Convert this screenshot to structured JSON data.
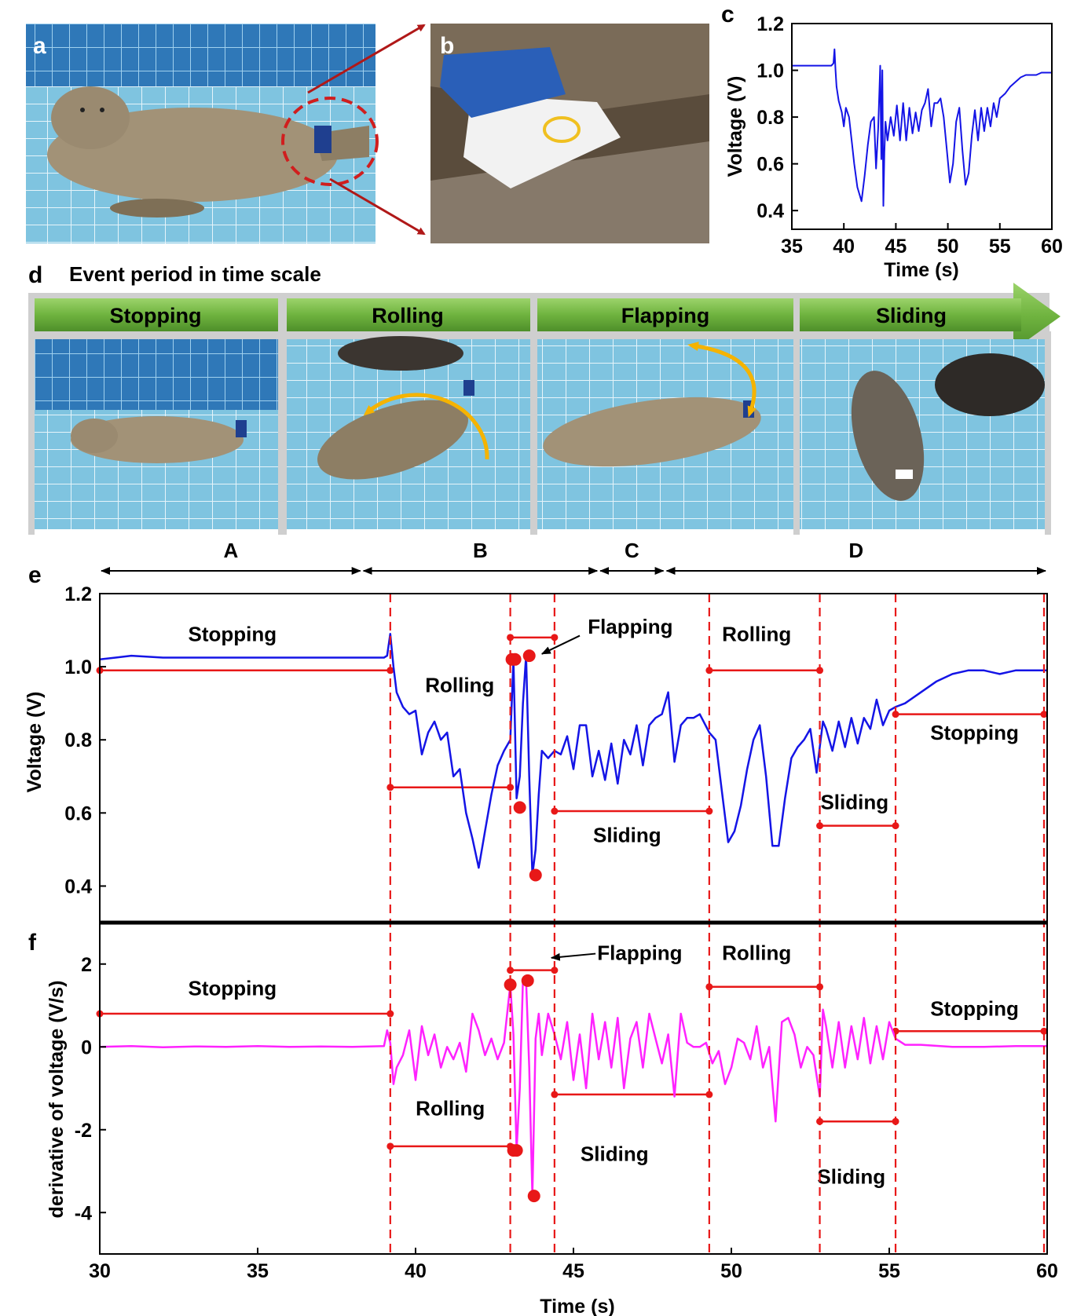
{
  "panel_labels": {
    "a": "a",
    "b": "b",
    "c": "c",
    "d": "d",
    "e": "e",
    "f": "f"
  },
  "photo_a": {
    "scene": "seal lying on tiled pool floor with sensor on tail flippers"
  },
  "photo_b": {
    "scene": "close-up of sensor strapped to seal hind flippers"
  },
  "panel_d": {
    "title": "Event period in time scale",
    "events": [
      {
        "label": "Stopping"
      },
      {
        "label": "Rolling"
      },
      {
        "label": "Flapping"
      },
      {
        "label": "Sliding"
      }
    ]
  },
  "segments": [
    {
      "label": "A",
      "from": 30,
      "to": 38.3
    },
    {
      "label": "B",
      "from": 38.3,
      "to": 45.8
    },
    {
      "label": "C",
      "from": 45.8,
      "to": 47.9
    },
    {
      "label": "D",
      "from": 47.9,
      "to": 60
    }
  ],
  "event_boundaries": [
    39.2,
    43.0,
    44.4,
    49.3,
    52.8,
    55.2,
    59.9
  ],
  "colors": {
    "voltage": "#1414e6",
    "derivative": "#ff22ff",
    "event": "#e81818",
    "arrow": "#f5b301",
    "banner_green": "#7cc14a"
  },
  "chart_data": [
    {
      "id": "c",
      "type": "line",
      "xlabel": "Time (s)",
      "ylabel": "Voltage (V)",
      "xlim": [
        35,
        60
      ],
      "ylim": [
        0.32,
        1.2
      ],
      "xticks": [
        35,
        40,
        45,
        50,
        55,
        60
      ],
      "yticks": [
        0.4,
        0.6,
        0.8,
        1.0,
        1.2
      ],
      "xtick_labels": [
        "35",
        "40",
        "45",
        "50",
        "55",
        "60"
      ],
      "ytick_labels": [
        "0.4",
        "0.6",
        "0.8",
        "1.0",
        "1.2"
      ],
      "series": [
        {
          "name": "Voltage",
          "color": "#1414e6",
          "x": [
            35,
            38.8,
            39.0,
            39.1,
            39.2,
            39.3,
            39.5,
            39.8,
            40.0,
            40.2,
            40.5,
            40.8,
            41.0,
            41.3,
            41.7,
            42.0,
            42.3,
            42.6,
            42.9,
            43.1,
            43.3,
            43.5,
            43.6,
            43.7,
            43.8,
            43.9,
            44.0,
            44.2,
            44.5,
            44.8,
            45.1,
            45.4,
            45.7,
            46.0,
            46.3,
            46.6,
            46.9,
            47.2,
            47.5,
            47.8,
            48.1,
            48.4,
            48.7,
            49.0,
            49.3,
            49.6,
            49.9,
            50.2,
            50.5,
            50.8,
            51.1,
            51.4,
            51.7,
            52.0,
            52.3,
            52.6,
            52.9,
            53.2,
            53.5,
            53.8,
            54.1,
            54.4,
            54.7,
            55.0,
            55.5,
            56,
            56.5,
            57,
            57.5,
            58,
            58.5,
            59,
            59.5,
            60
          ],
          "y": [
            1.02,
            1.02,
            1.03,
            1.09,
            1.0,
            0.93,
            0.87,
            0.82,
            0.76,
            0.84,
            0.8,
            0.68,
            0.6,
            0.5,
            0.44,
            0.55,
            0.68,
            0.78,
            0.8,
            0.58,
            0.75,
            1.02,
            0.62,
            1.0,
            0.42,
            0.65,
            0.78,
            0.7,
            0.8,
            0.72,
            0.85,
            0.7,
            0.86,
            0.7,
            0.84,
            0.73,
            0.82,
            0.74,
            0.83,
            0.86,
            0.92,
            0.76,
            0.86,
            0.86,
            0.88,
            0.8,
            0.66,
            0.52,
            0.6,
            0.78,
            0.84,
            0.66,
            0.51,
            0.56,
            0.72,
            0.83,
            0.7,
            0.84,
            0.74,
            0.84,
            0.76,
            0.86,
            0.8,
            0.88,
            0.9,
            0.93,
            0.95,
            0.97,
            0.98,
            0.98,
            0.98,
            0.99,
            0.99,
            0.99
          ]
        }
      ]
    },
    {
      "id": "e",
      "type": "line",
      "xlabel": "",
      "ylabel": "Voltage (V)",
      "xlim": [
        30,
        60
      ],
      "ylim": [
        0.3,
        1.2
      ],
      "yticks": [
        0.4,
        0.6,
        0.8,
        1.0,
        1.2
      ],
      "ytick_labels": [
        "0.4",
        "0.6",
        "0.8",
        "1.0",
        "1.2"
      ],
      "series": [
        {
          "name": "Voltage",
          "color": "#1414e6",
          "x": [
            30,
            30.5,
            31,
            32,
            33,
            34,
            35,
            36,
            37,
            38,
            39.0,
            39.1,
            39.2,
            39.3,
            39.4,
            39.6,
            39.8,
            40.0,
            40.2,
            40.4,
            40.6,
            40.8,
            41.0,
            41.2,
            41.4,
            41.6,
            41.8,
            42.0,
            42.2,
            42.4,
            42.6,
            42.8,
            43.0,
            43.1,
            43.2,
            43.3,
            43.4,
            43.5,
            43.6,
            43.7,
            43.8,
            43.9,
            44.0,
            44.2,
            44.4,
            44.6,
            44.8,
            45.0,
            45.2,
            45.4,
            45.6,
            45.8,
            46.0,
            46.2,
            46.4,
            46.6,
            46.8,
            47.0,
            47.2,
            47.4,
            47.6,
            47.8,
            48.0,
            48.2,
            48.4,
            48.6,
            48.8,
            49.0,
            49.3,
            49.5,
            49.7,
            49.9,
            50.1,
            50.3,
            50.5,
            50.7,
            50.9,
            51.1,
            51.3,
            51.5,
            51.7,
            51.9,
            52.1,
            52.3,
            52.5,
            52.7,
            52.9,
            53.0,
            53.2,
            53.4,
            53.6,
            53.8,
            54.0,
            54.2,
            54.4,
            54.6,
            54.8,
            55.0,
            55.2,
            55.5,
            56,
            56.5,
            57,
            57.5,
            58,
            58.5,
            59,
            59.5,
            60
          ],
          "y": [
            1.02,
            1.025,
            1.03,
            1.025,
            1.025,
            1.025,
            1.025,
            1.025,
            1.025,
            1.025,
            1.025,
            1.03,
            1.09,
            1.0,
            0.93,
            0.89,
            0.87,
            0.88,
            0.76,
            0.82,
            0.85,
            0.8,
            0.82,
            0.7,
            0.72,
            0.6,
            0.53,
            0.45,
            0.55,
            0.65,
            0.73,
            0.77,
            0.8,
            1.02,
            0.64,
            0.7,
            0.9,
            1.03,
            0.7,
            0.43,
            0.5,
            0.65,
            0.77,
            0.75,
            0.77,
            0.76,
            0.81,
            0.72,
            0.84,
            0.84,
            0.7,
            0.77,
            0.69,
            0.79,
            0.68,
            0.8,
            0.76,
            0.84,
            0.73,
            0.84,
            0.86,
            0.87,
            0.93,
            0.74,
            0.84,
            0.86,
            0.86,
            0.87,
            0.82,
            0.8,
            0.66,
            0.52,
            0.55,
            0.62,
            0.72,
            0.8,
            0.84,
            0.7,
            0.51,
            0.51,
            0.64,
            0.75,
            0.78,
            0.8,
            0.83,
            0.71,
            0.85,
            0.83,
            0.77,
            0.85,
            0.78,
            0.86,
            0.79,
            0.86,
            0.83,
            0.91,
            0.84,
            0.88,
            0.89,
            0.9,
            0.93,
            0.96,
            0.98,
            0.99,
            0.99,
            0.98,
            0.99,
            0.99,
            0.99
          ]
        }
      ],
      "event_bars": [
        {
          "label": "Stopping",
          "x0": 30,
          "x1": 39.2,
          "y": 0.99
        },
        {
          "label": "Rolling",
          "x0": 39.2,
          "x1": 43.0,
          "y": 0.67
        },
        {
          "label": "Flapping",
          "x0": 43.0,
          "x1": 44.4,
          "y": 1.08
        },
        {
          "label": "Sliding",
          "x0": 44.4,
          "x1": 49.3,
          "y": 0.605
        },
        {
          "label": "Rolling",
          "x0": 49.3,
          "x1": 52.8,
          "y": 0.99
        },
        {
          "label": "Sliding",
          "x0": 52.8,
          "x1": 55.2,
          "y": 0.565
        },
        {
          "label": "Stopping",
          "x0": 55.2,
          "x1": 59.9,
          "y": 0.87
        }
      ],
      "peak_markers": [
        [
          43.05,
          1.02
        ],
        [
          43.15,
          1.02
        ],
        [
          43.3,
          0.615
        ],
        [
          43.6,
          1.03
        ],
        [
          43.8,
          0.43
        ]
      ],
      "annotations": [
        {
          "text": "Stopping",
          "x": 34.2,
          "y": 1.07
        },
        {
          "text": "Rolling",
          "x": 41.4,
          "y": 0.93
        },
        {
          "text": "Flapping",
          "x": 46.8,
          "y": 1.09
        },
        {
          "text": "Rolling",
          "x": 50.8,
          "y": 1.07
        },
        {
          "text": "Stopping",
          "x": 57.7,
          "y": 0.8
        },
        {
          "text": "Sliding",
          "x": 46.7,
          "y": 0.52
        },
        {
          "text": "Sliding",
          "x": 53.9,
          "y": 0.61
        }
      ]
    },
    {
      "id": "f",
      "type": "line",
      "xlabel": "Time (s)",
      "ylabel": "derivative of voltage (V/s)",
      "xlim": [
        30,
        60
      ],
      "ylim": [
        -5,
        3
      ],
      "xticks": [
        30,
        35,
        40,
        45,
        50,
        55,
        60
      ],
      "yticks": [
        -4,
        -2,
        0,
        2
      ],
      "xtick_labels": [
        "30",
        "35",
        "40",
        "45",
        "50",
        "55",
        "60"
      ],
      "ytick_labels": [
        "-4",
        "-2",
        "0",
        "2"
      ],
      "series": [
        {
          "name": "derivative",
          "color": "#ff22ff",
          "x": [
            30,
            31,
            32,
            33,
            34,
            35,
            36,
            37,
            38,
            39.0,
            39.1,
            39.2,
            39.3,
            39.4,
            39.6,
            39.8,
            40.0,
            40.2,
            40.4,
            40.6,
            40.8,
            41.0,
            41.2,
            41.4,
            41.6,
            41.8,
            42.0,
            42.2,
            42.4,
            42.6,
            42.8,
            43.0,
            43.1,
            43.2,
            43.3,
            43.4,
            43.5,
            43.6,
            43.7,
            43.8,
            43.9,
            44.0,
            44.2,
            44.4,
            44.6,
            44.8,
            45.0,
            45.2,
            45.4,
            45.6,
            45.8,
            46.0,
            46.2,
            46.4,
            46.6,
            46.8,
            47.0,
            47.2,
            47.4,
            47.6,
            47.8,
            48.0,
            48.2,
            48.4,
            48.6,
            48.8,
            49.0,
            49.2,
            49.4,
            49.6,
            49.8,
            50.0,
            50.2,
            50.4,
            50.6,
            50.8,
            51.0,
            51.2,
            51.4,
            51.6,
            51.8,
            52.0,
            52.2,
            52.4,
            52.6,
            52.8,
            52.9,
            53.0,
            53.2,
            53.4,
            53.6,
            53.8,
            54.0,
            54.2,
            54.4,
            54.6,
            54.8,
            55.0,
            55.2,
            55.5,
            56,
            57,
            58,
            59,
            60
          ],
          "y": [
            0,
            0.02,
            -0.01,
            0.01,
            0,
            0.02,
            0,
            0.01,
            0,
            0.02,
            0.4,
            0.1,
            -0.9,
            -0.5,
            -0.2,
            0.4,
            -0.8,
            0.5,
            -0.2,
            0.3,
            -0.5,
            0.0,
            -0.3,
            0.1,
            -0.6,
            0.8,
            0.4,
            -0.2,
            0.2,
            -0.3,
            0.1,
            1.5,
            0.3,
            -2.5,
            -1.0,
            1.6,
            1.6,
            -0.5,
            -3.6,
            0.2,
            0.8,
            -0.2,
            0.8,
            0.3,
            -0.3,
            0.6,
            -0.8,
            0.3,
            -1.0,
            0.8,
            -0.3,
            0.6,
            -0.5,
            0.7,
            -1.0,
            0.2,
            0.6,
            -0.5,
            0.8,
            0.2,
            -0.4,
            0.3,
            -1.2,
            0.8,
            0.1,
            0.0,
            0.0,
            0.1,
            -0.4,
            -0.1,
            -0.9,
            -0.5,
            0.2,
            0.1,
            -0.3,
            0.5,
            -0.5,
            0.0,
            -1.8,
            0.6,
            0.7,
            0.3,
            -0.5,
            0.0,
            -0.2,
            -1.2,
            0.9,
            0.5,
            -0.5,
            0.6,
            -0.5,
            0.5,
            -0.3,
            0.7,
            -0.4,
            0.5,
            -0.3,
            0.6,
            0.2,
            0.05,
            0.05,
            0.0,
            0.0,
            0.02,
            0.02
          ]
        }
      ],
      "event_bars": [
        {
          "label": "Stopping",
          "x0": 30,
          "x1": 39.2,
          "y": 0.8
        },
        {
          "label": "Rolling",
          "x0": 39.2,
          "x1": 43.0,
          "y": -2.4
        },
        {
          "label": "Flapping",
          "x0": 43.0,
          "x1": 44.4,
          "y": 1.85
        },
        {
          "label": "Sliding",
          "x0": 44.4,
          "x1": 49.3,
          "y": -1.15
        },
        {
          "label": "Rolling",
          "x0": 49.3,
          "x1": 52.8,
          "y": 1.45
        },
        {
          "label": "Sliding",
          "x0": 52.8,
          "x1": 55.2,
          "y": -1.8
        },
        {
          "label": "Stopping",
          "x0": 55.2,
          "x1": 59.9,
          "y": 0.38
        }
      ],
      "peak_markers": [
        [
          43.0,
          1.5
        ],
        [
          43.1,
          -2.5
        ],
        [
          43.2,
          -2.5
        ],
        [
          43.55,
          1.6
        ],
        [
          43.75,
          -3.6
        ]
      ],
      "annotations": [
        {
          "text": "Stopping",
          "x": 34.2,
          "y": 1.25
        },
        {
          "text": "Rolling",
          "x": 41.1,
          "y": -1.65
        },
        {
          "text": "Flapping",
          "x": 47.1,
          "y": 2.1
        },
        {
          "text": "Rolling",
          "x": 50.8,
          "y": 2.1
        },
        {
          "text": "Stopping",
          "x": 57.7,
          "y": 0.75
        },
        {
          "text": "Sliding",
          "x": 46.3,
          "y": -2.75
        },
        {
          "text": "Sliding",
          "x": 53.8,
          "y": -3.3
        }
      ]
    }
  ]
}
